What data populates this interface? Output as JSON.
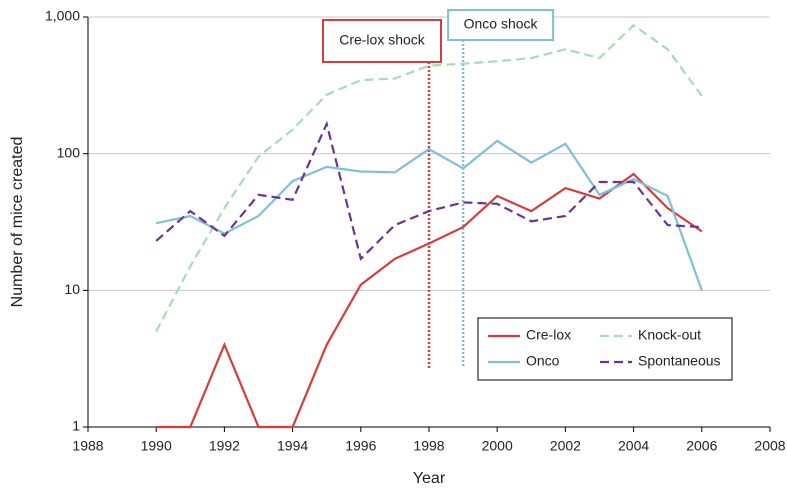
{
  "chart_data": {
    "type": "line",
    "x_label": "Year",
    "y_label": "Number of mice created",
    "x": [
      1990,
      1991,
      1992,
      1993,
      1994,
      1995,
      1996,
      1997,
      1998,
      1999,
      2000,
      2001,
      2002,
      2003,
      2004,
      2005,
      2006
    ],
    "series": [
      {
        "name": "Cre-lox",
        "color": "#d63c3c",
        "dash": false,
        "values": [
          1,
          1,
          4,
          1,
          1,
          4,
          11,
          17,
          22,
          29,
          49,
          38,
          56,
          47,
          71,
          40,
          27
        ]
      },
      {
        "name": "Knock-out",
        "color": "#a8dcb4",
        "dash": true,
        "values": [
          5,
          15,
          40,
          95,
          150,
          270,
          345,
          355,
          440,
          455,
          475,
          500,
          580,
          500,
          870,
          580,
          265
        ]
      },
      {
        "name": "Onco",
        "color": "#7fc0d6",
        "dash": false,
        "values": [
          31,
          35,
          26,
          35,
          63,
          80,
          74,
          73,
          108,
          78,
          124,
          86,
          118,
          50,
          65,
          49,
          10
        ]
      },
      {
        "name": "Spontaneous",
        "color": "#6a3592",
        "dash": true,
        "values": [
          23,
          38,
          25,
          50,
          46,
          165,
          17,
          30,
          38,
          44,
          43,
          32,
          35,
          62,
          62,
          30,
          29
        ]
      }
    ],
    "annotations": [
      {
        "text": "Cre-lox  shock",
        "x": 1998,
        "color": "#d63c3c"
      },
      {
        "text": "Onco shock",
        "x": 1999,
        "color": "#7fc0d6"
      }
    ],
    "xlim": [
      1988,
      2008
    ],
    "xticks": [
      1988,
      1990,
      1992,
      1994,
      1996,
      1998,
      2000,
      2002,
      2004,
      2006,
      2008
    ],
    "ylim": [
      1,
      1000
    ],
    "yticks": [
      1,
      10,
      100,
      {
        "value": 1000,
        "label": "1,000"
      }
    ],
    "log_y": true,
    "grid": true,
    "legend": "lower right"
  }
}
